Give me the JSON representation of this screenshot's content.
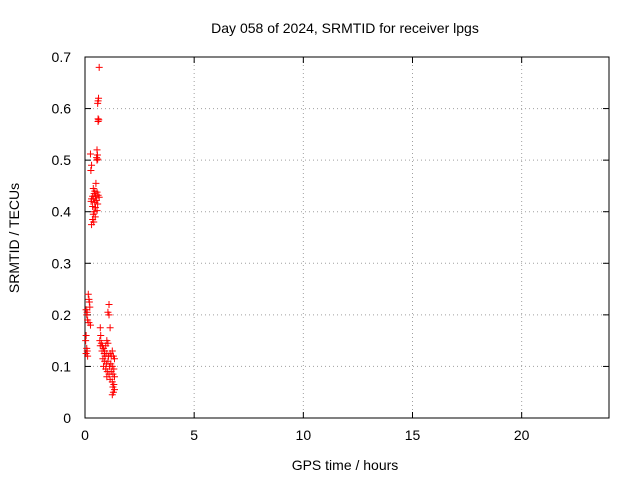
{
  "chart_data": {
    "type": "scatter",
    "title": "Day 058 of 2024, SRMTID for receiver lpgs",
    "xlabel": "GPS time / hours",
    "ylabel": "SRMTID / TECUs",
    "xlim": [
      0,
      24
    ],
    "ylim": [
      0,
      0.7
    ],
    "x_ticks": [
      0,
      5,
      10,
      15,
      20
    ],
    "y_ticks": [
      0,
      0.1,
      0.2,
      0.3,
      0.4,
      0.5,
      0.6,
      0.7
    ],
    "x_tick_labels": [
      "0",
      "5",
      "10",
      "15",
      "20"
    ],
    "y_tick_labels": [
      "0",
      "0.1",
      "0.2",
      "0.3",
      "0.4",
      "0.5",
      "0.6",
      "0.7"
    ],
    "grid": true,
    "marker": "+",
    "series": [
      {
        "color": "#ff0000",
        "points": [
          [
            0.65,
            0.68
          ],
          [
            0.62,
            0.62
          ],
          [
            0.6,
            0.615
          ],
          [
            0.58,
            0.61
          ],
          [
            0.6,
            0.58
          ],
          [
            0.63,
            0.578
          ],
          [
            0.6,
            0.575
          ],
          [
            0.55,
            0.52
          ],
          [
            0.57,
            0.51
          ],
          [
            0.53,
            0.505
          ],
          [
            0.55,
            0.5
          ],
          [
            0.58,
            0.502
          ],
          [
            0.25,
            0.512
          ],
          [
            0.3,
            0.49
          ],
          [
            0.27,
            0.48
          ],
          [
            0.5,
            0.455
          ],
          [
            0.38,
            0.445
          ],
          [
            0.45,
            0.44
          ],
          [
            0.42,
            0.435
          ],
          [
            0.55,
            0.438
          ],
          [
            0.35,
            0.43
          ],
          [
            0.48,
            0.43
          ],
          [
            0.6,
            0.432
          ],
          [
            0.3,
            0.425
          ],
          [
            0.4,
            0.425
          ],
          [
            0.52,
            0.422
          ],
          [
            0.65,
            0.428
          ],
          [
            0.28,
            0.42
          ],
          [
            0.45,
            0.418
          ],
          [
            0.58,
            0.415
          ],
          [
            0.35,
            0.41
          ],
          [
            0.48,
            0.408
          ],
          [
            0.42,
            0.4
          ],
          [
            0.55,
            0.402
          ],
          [
            0.38,
            0.395
          ],
          [
            0.47,
            0.39
          ],
          [
            0.35,
            0.385
          ],
          [
            0.4,
            0.38
          ],
          [
            0.3,
            0.375
          ],
          [
            0.05,
            0.21
          ],
          [
            0.1,
            0.205
          ],
          [
            0.15,
            0.24
          ],
          [
            0.18,
            0.23
          ],
          [
            0.2,
            0.225
          ],
          [
            0.22,
            0.215
          ],
          [
            0.08,
            0.2
          ],
          [
            0.12,
            0.19
          ],
          [
            0.18,
            0.185
          ],
          [
            0.25,
            0.18
          ],
          [
            0.05,
            0.16
          ],
          [
            0.03,
            0.15
          ],
          [
            0.08,
            0.135
          ],
          [
            0.1,
            0.13
          ],
          [
            0.05,
            0.125
          ],
          [
            0.12,
            0.12
          ],
          [
            1.1,
            0.22
          ],
          [
            1.05,
            0.205
          ],
          [
            1.1,
            0.2
          ],
          [
            1.15,
            0.175
          ],
          [
            0.7,
            0.175
          ],
          [
            0.72,
            0.16
          ],
          [
            0.68,
            0.15
          ],
          [
            0.75,
            0.145
          ],
          [
            0.8,
            0.14
          ],
          [
            0.85,
            0.135
          ],
          [
            0.9,
            0.13
          ],
          [
            0.95,
            0.14
          ],
          [
            1.0,
            0.15
          ],
          [
            1.05,
            0.145
          ],
          [
            0.7,
            0.14
          ],
          [
            0.78,
            0.13
          ],
          [
            0.88,
            0.125
          ],
          [
            0.92,
            0.12
          ],
          [
            1.0,
            0.125
          ],
          [
            1.08,
            0.12
          ],
          [
            1.15,
            0.125
          ],
          [
            1.2,
            0.12
          ],
          [
            1.25,
            0.13
          ],
          [
            1.3,
            0.12
          ],
          [
            1.35,
            0.115
          ],
          [
            0.82,
            0.115
          ],
          [
            0.9,
            0.11
          ],
          [
            0.98,
            0.105
          ],
          [
            1.05,
            0.11
          ],
          [
            1.12,
            0.1
          ],
          [
            1.18,
            0.105
          ],
          [
            1.25,
            0.1
          ],
          [
            1.32,
            0.095
          ],
          [
            0.85,
            0.1
          ],
          [
            0.95,
            0.095
          ],
          [
            1.02,
            0.09
          ],
          [
            1.1,
            0.085
          ],
          [
            1.2,
            0.09
          ],
          [
            1.28,
            0.085
          ],
          [
            1.35,
            0.08
          ],
          [
            1.0,
            0.08
          ],
          [
            1.15,
            0.075
          ],
          [
            1.25,
            0.07
          ],
          [
            1.32,
            0.065
          ],
          [
            1.28,
            0.06
          ],
          [
            1.35,
            0.055
          ],
          [
            1.3,
            0.05
          ],
          [
            1.25,
            0.045
          ]
        ]
      }
    ]
  }
}
